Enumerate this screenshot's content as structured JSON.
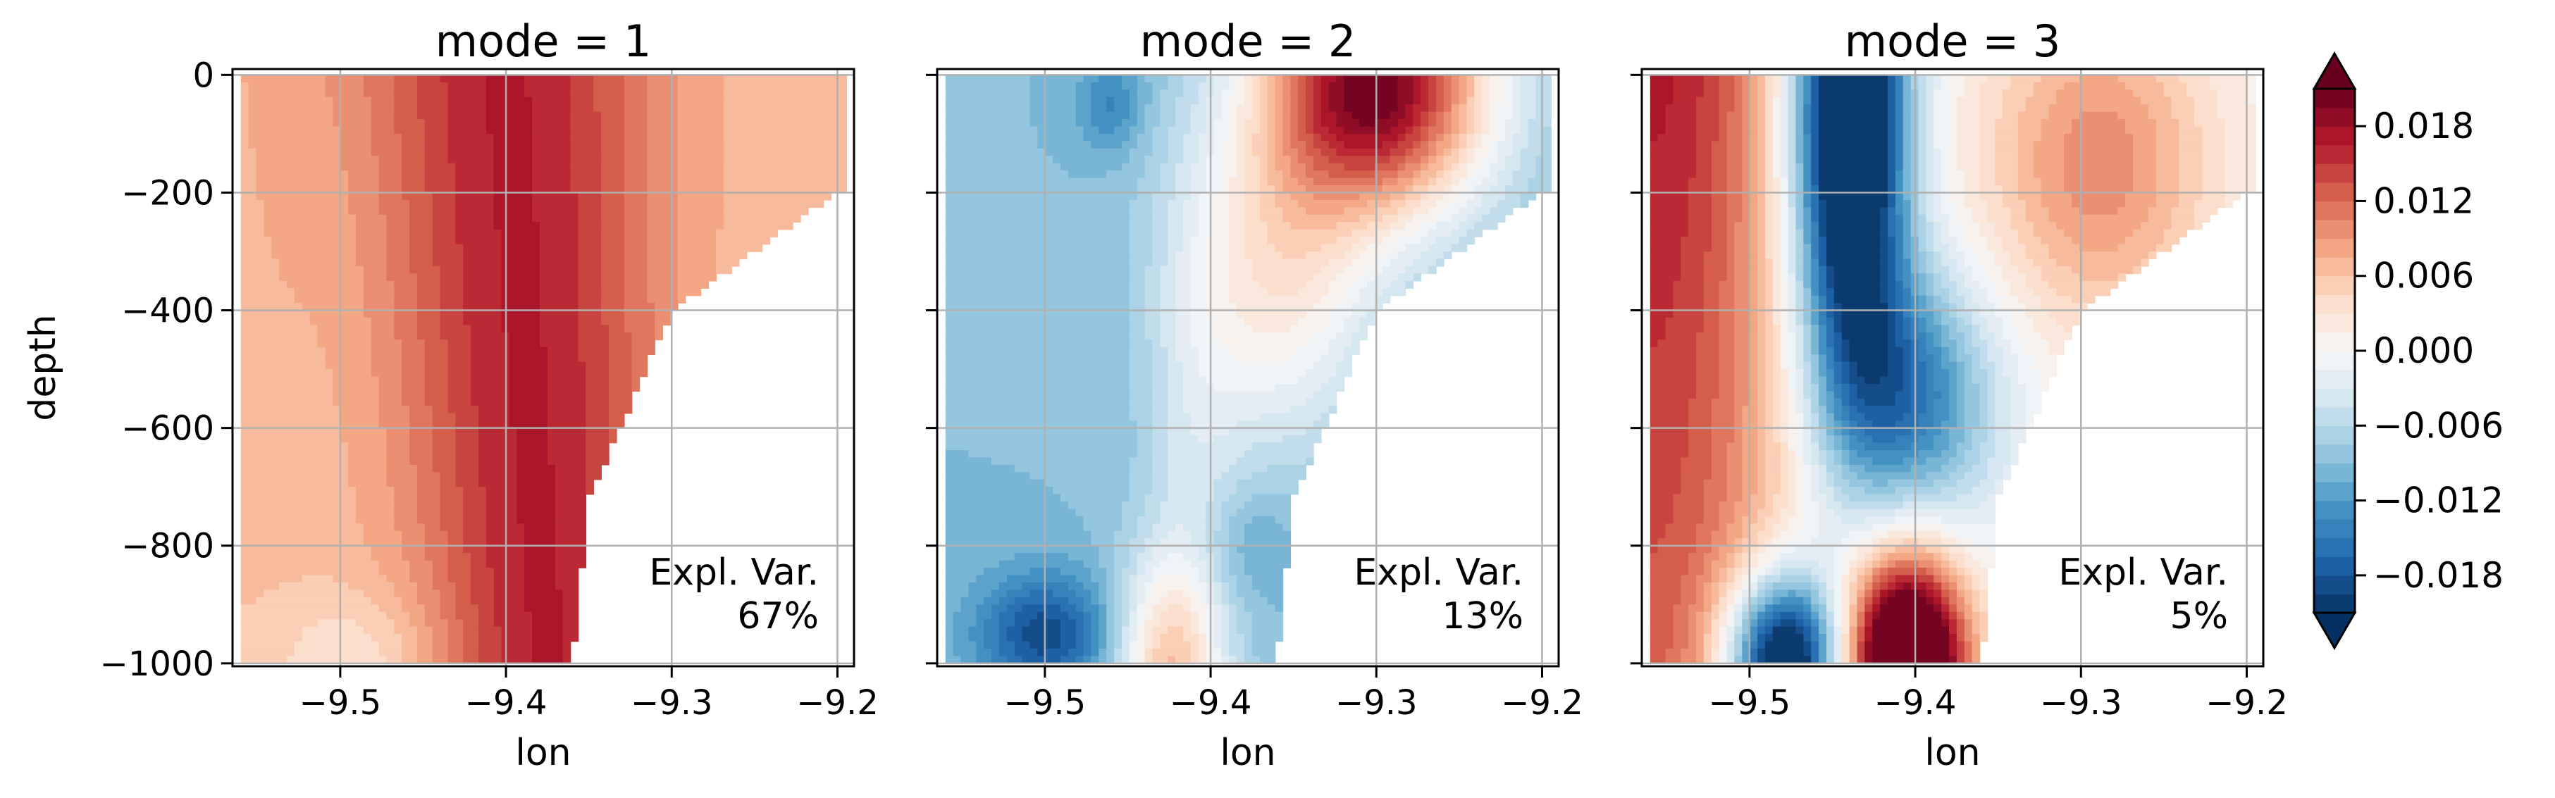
{
  "chart_data": {
    "type": "heatmap",
    "xlabel": "lon",
    "ylabel": "depth",
    "xlim": [
      -9.565,
      -9.19
    ],
    "ylim": [
      -1005,
      10
    ],
    "x_ticks": [
      -9.5,
      -9.4,
      -9.3,
      -9.2
    ],
    "x_tick_labels": [
      "−9.5",
      "−9.4",
      "−9.3",
      "−9.2"
    ],
    "y_ticks": [
      0,
      -200,
      -400,
      -600,
      -800,
      -1000
    ],
    "y_tick_labels": [
      "0",
      "−200",
      "−400",
      "−600",
      "−800",
      "−1000"
    ],
    "grid": true,
    "colormap": "RdBu_r",
    "bathymetry_edge": [
      [
        -9.195,
        -190
      ],
      [
        -9.3,
        -400
      ],
      [
        -9.35,
        -720
      ],
      [
        -9.36,
        -1000
      ]
    ],
    "panels": [
      {
        "title": "mode = 1",
        "annotation_line1": "Expl. Var.",
        "annotation_line2": "67%",
        "explained_variance_pct": 67,
        "value_range": [
          0.005,
          0.017
        ],
        "structure": "single-signed positive, maximum near lon −9.4 throughout the column"
      },
      {
        "title": "mode = 2",
        "annotation_line1": "Expl. Var.",
        "annotation_line2": "13%",
        "explained_variance_pct": 13,
        "value_range": [
          -0.018,
          0.021
        ],
        "structure": "dipole: negative west of −9.43, positive maximum near −9.3 at 0 to −200 depth"
      },
      {
        "title": "mode = 3",
        "annotation_line1": "Expl. Var.",
        "annotation_line2": "5%",
        "explained_variance_pct": 5,
        "value_range": [
          -0.02,
          0.02
        ],
        "structure": "tripole: strong negative core near −9.45 at surface, positive core near −9.4 at −1000 depth"
      }
    ],
    "colorbar": {
      "levels": [
        -0.021,
        -0.0195,
        -0.018,
        -0.0165,
        -0.015,
        -0.0135,
        -0.012,
        -0.0105,
        -0.009,
        -0.0075,
        -0.006,
        -0.0045,
        -0.003,
        -0.0015,
        0.0,
        0.0015,
        0.003,
        0.0045,
        0.006,
        0.0075,
        0.009,
        0.0105,
        0.012,
        0.0135,
        0.015,
        0.0165,
        0.018,
        0.0195,
        0.021
      ],
      "ticks": [
        -0.018,
        -0.012,
        -0.006,
        0.0,
        0.006,
        0.012,
        0.018
      ],
      "tick_labels": [
        "−0.018",
        "−0.012",
        "−0.006",
        "0.000",
        "0.006",
        "0.012",
        "0.018"
      ],
      "extend": "both"
    }
  }
}
